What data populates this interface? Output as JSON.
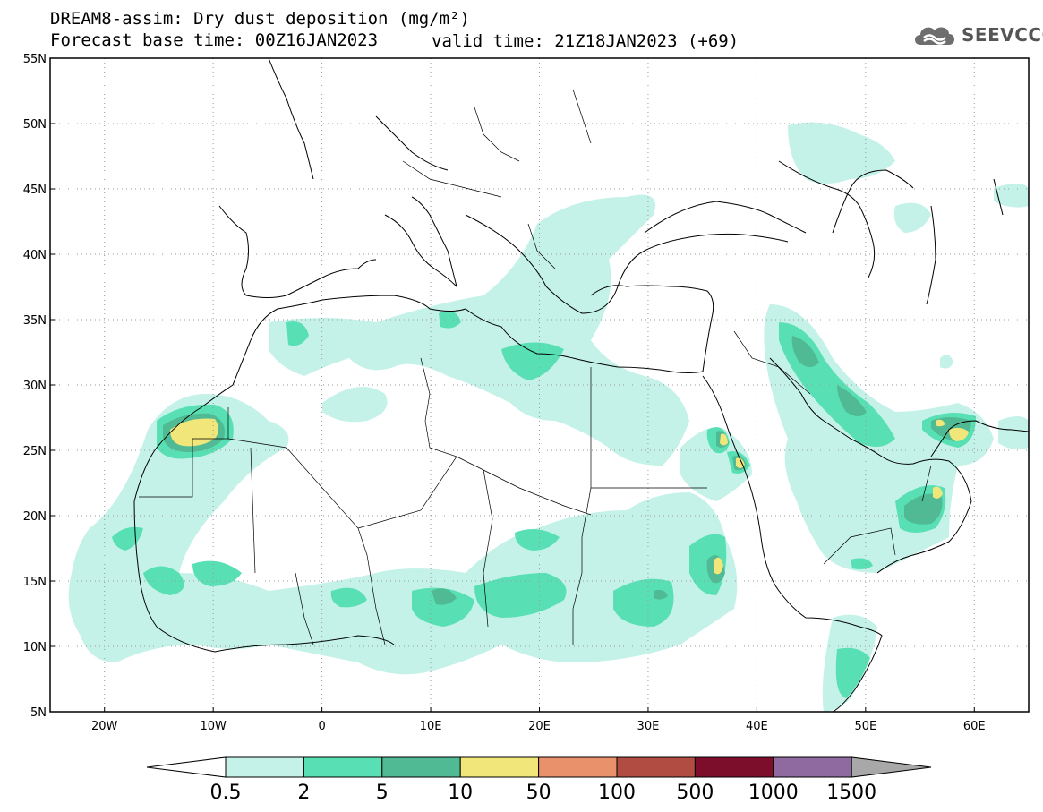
{
  "title": {
    "line1": "DREAM8-assim: Dry dust deposition (mg/m²)",
    "line2_left": "Forecast base time: 00Z16JAN2023",
    "line2_right": "valid time: 21Z18JAN2023 (+69)"
  },
  "logo": {
    "text": "SEEVCCC",
    "icon": "cloud-icon"
  },
  "axes": {
    "lat_labels": [
      "55N",
      "50N",
      "45N",
      "40N",
      "35N",
      "30N",
      "25N",
      "20N",
      "15N",
      "10N",
      "5N"
    ],
    "lon_labels": [
      "20W",
      "10W",
      "0",
      "10E",
      "20E",
      "30E",
      "40E",
      "50E",
      "60E"
    ],
    "lat_values": [
      55,
      50,
      45,
      40,
      35,
      30,
      25,
      20,
      15,
      10,
      5
    ],
    "lon_values": [
      -20,
      -10,
      0,
      10,
      20,
      30,
      40,
      50,
      60
    ],
    "lon_range": [
      -25,
      65
    ],
    "lat_range": [
      5,
      55
    ]
  },
  "colorbar": {
    "labels": [
      "0.5",
      "2",
      "5",
      "10",
      "50",
      "100",
      "500",
      "1000",
      "1500"
    ],
    "colors": [
      "#c4f2e8",
      "#58e0b4",
      "#4fba93",
      "#f0e67a",
      "#e9916b",
      "#b04c42",
      "#7c0e2b",
      "#8e6aa1",
      "#a8a8a8"
    ],
    "extend_low_color": "#ffffff"
  }
}
